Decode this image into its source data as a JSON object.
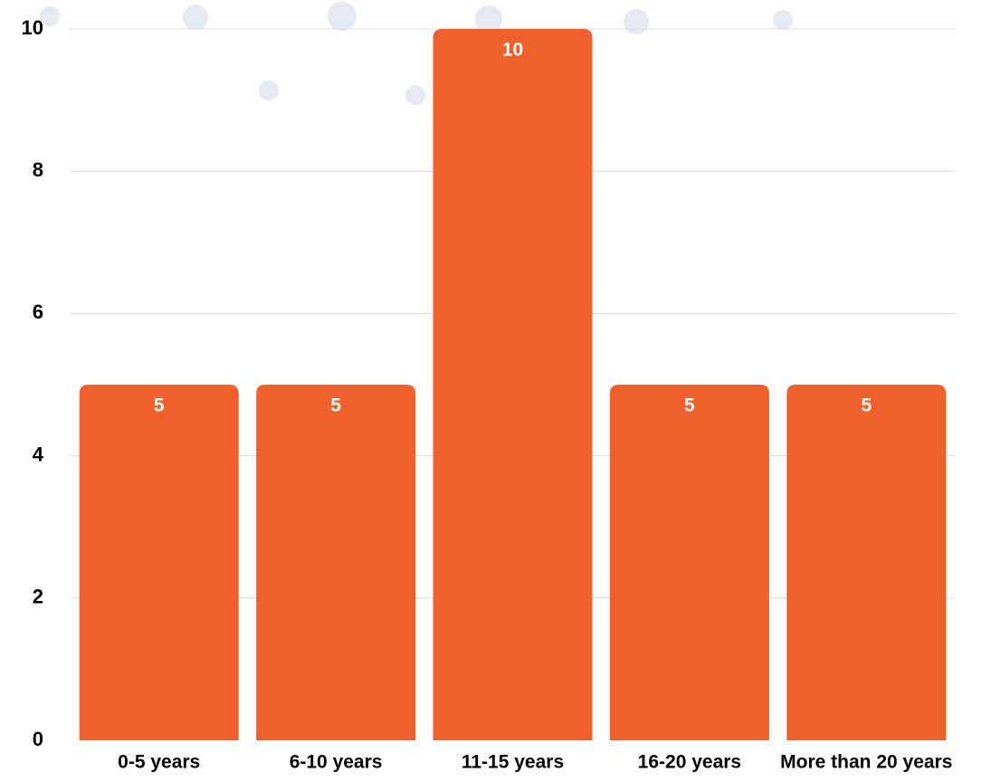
{
  "chart_data": {
    "type": "bar",
    "categories": [
      "0-5 years",
      "6-10 years",
      "11-15 years",
      "16-20 years",
      "More than 20 years"
    ],
    "values": [
      5,
      5,
      10,
      5,
      5
    ],
    "data_labels": [
      "5",
      "5",
      "10",
      "5",
      "5"
    ],
    "y_ticks": [
      "0",
      "2",
      "4",
      "6",
      "8",
      "10"
    ],
    "ylim": [
      0,
      10
    ],
    "grid": true,
    "legend": "none",
    "title": "",
    "xlabel": "",
    "ylabel": ""
  },
  "colors": {
    "bar": "#F0602D",
    "grid": "#D9D9D9",
    "decoration": "#E5E9F2",
    "text": "#000000",
    "value_text": "#FFFFFF"
  }
}
